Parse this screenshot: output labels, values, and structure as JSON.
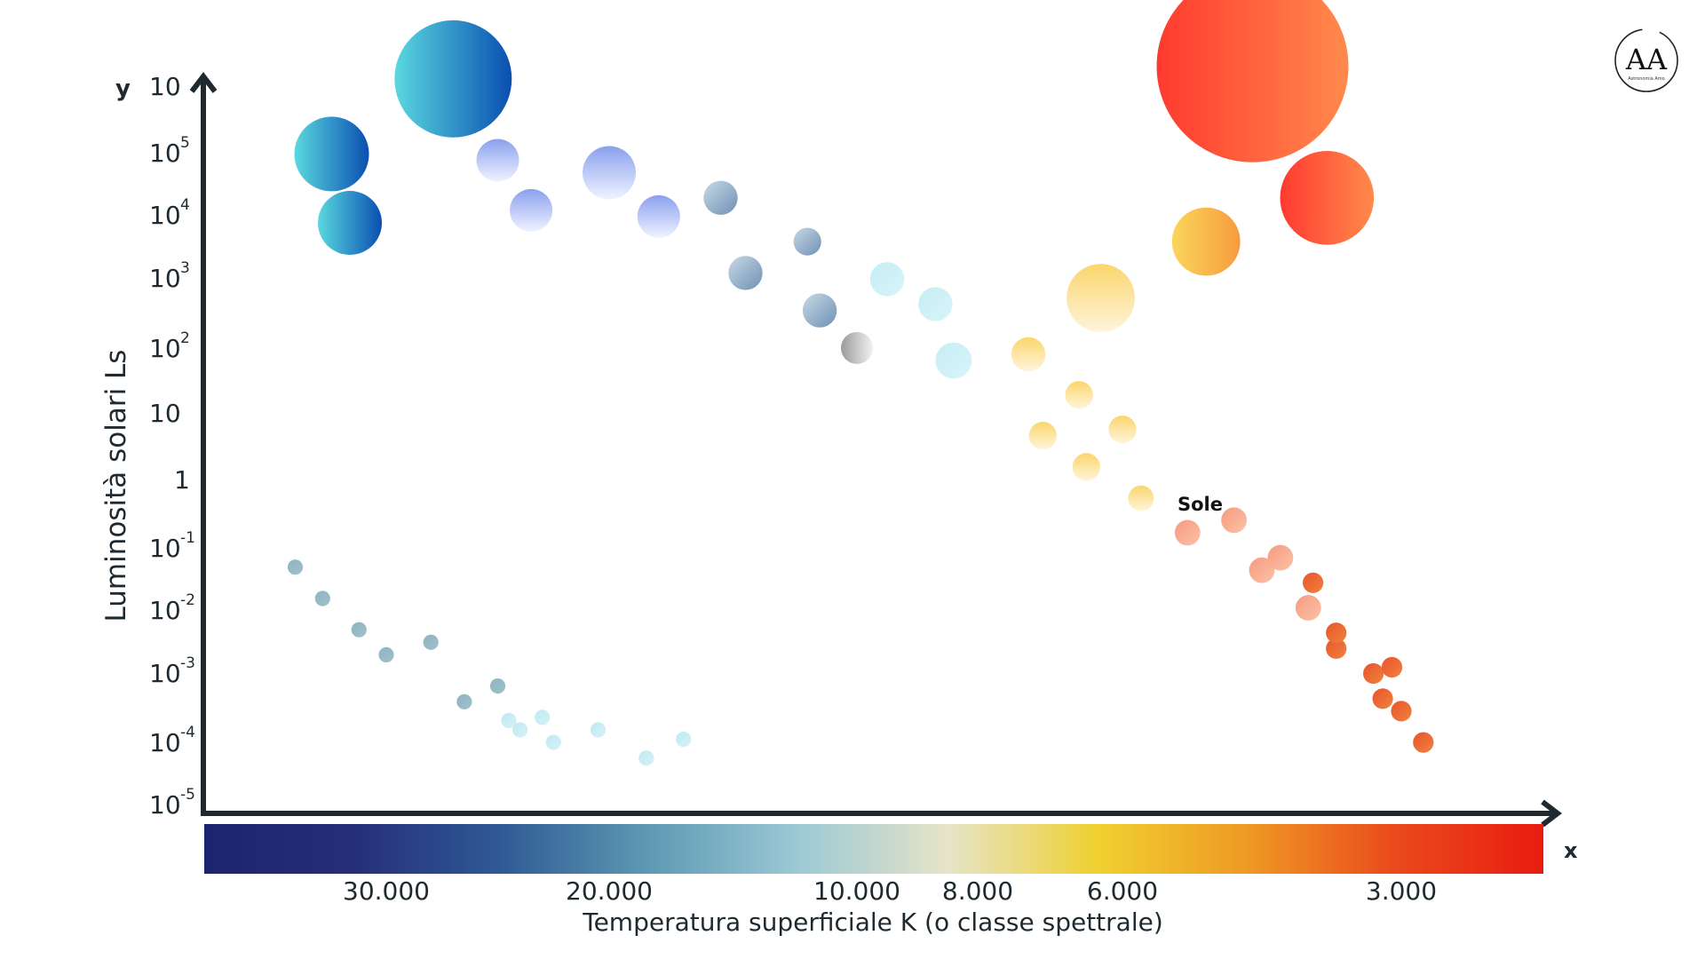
{
  "chart_data": {
    "type": "scatter",
    "title": "",
    "xlabel": "Temperatura superficiale K (o classe spettrale)",
    "ylabel": "Luminosità solari Ls",
    "x_axis_letter": "x",
    "y_axis_letter": "y",
    "x_scale": "reversed",
    "y_scale": "log",
    "ylim_exponent": [
      -5,
      6
    ],
    "x_tick_labels": [
      "30.000",
      "20.000",
      "10.000",
      "8.000",
      "6.000",
      "3.000"
    ],
    "y_tick_labels": [
      {
        "base": "10",
        "exp": ""
      },
      {
        "base": "10",
        "exp": "5"
      },
      {
        "base": "10",
        "exp": "4"
      },
      {
        "base": "10",
        "exp": "3"
      },
      {
        "base": "10",
        "exp": "2"
      },
      {
        "base": "10",
        "exp": ""
      },
      {
        "base": "1",
        "exp": ""
      },
      {
        "base": "10",
        "exp": "-1"
      },
      {
        "base": "10",
        "exp": "-2"
      },
      {
        "base": "10",
        "exp": "-3"
      },
      {
        "base": "10",
        "exp": "-4"
      },
      {
        "base": "10",
        "exp": "-5"
      }
    ],
    "color_bar": [
      "#1c2470",
      "#262e7a",
      "#2f5a95",
      "#5e9ab3",
      "#9cc9d5",
      "#e6e4c7",
      "#efd030",
      "#ef9a24",
      "#ea4a1c",
      "#e81c10"
    ],
    "annotation": "Sole",
    "grid": false,
    "legend": "none",
    "series": [
      {
        "group": "hot-blue",
        "points": [
          {
            "T": 27000,
            "logL": 6.4,
            "r": 5.5
          },
          {
            "T": 33000,
            "logL": 5.2,
            "r": 3.5
          },
          {
            "T": 32000,
            "logL": 4.1,
            "r": 3.0
          },
          {
            "T": 25000,
            "logL": 5.1,
            "r": 2.0
          },
          {
            "T": 23500,
            "logL": 4.3,
            "r": 2.0
          },
          {
            "T": 20000,
            "logL": 4.9,
            "r": 2.5
          },
          {
            "T": 18000,
            "logL": 4.2,
            "r": 2.0
          }
        ]
      },
      {
        "group": "blue-white",
        "points": [
          {
            "T": 15500,
            "logL": 4.5,
            "r": 1.6
          },
          {
            "T": 14500,
            "logL": 3.3,
            "r": 1.6
          },
          {
            "T": 12000,
            "logL": 3.8,
            "r": 1.3
          },
          {
            "T": 11500,
            "logL": 2.7,
            "r": 1.6
          },
          {
            "T": 10000,
            "logL": 2.1,
            "r": 1.5
          },
          {
            "T": 9500,
            "logL": 3.2,
            "r": 1.6
          },
          {
            "T": 8700,
            "logL": 2.8,
            "r": 1.6
          },
          {
            "T": 8400,
            "logL": 1.9,
            "r": 1.7
          }
        ]
      },
      {
        "group": "yellow",
        "points": [
          {
            "T": 7300,
            "logL": 2.0,
            "r": 1.6
          },
          {
            "T": 7100,
            "logL": 0.7,
            "r": 1.3
          },
          {
            "T": 6600,
            "logL": 1.35,
            "r": 1.3
          },
          {
            "T": 6500,
            "logL": 0.2,
            "r": 1.3
          },
          {
            "T": 6000,
            "logL": 0.8,
            "r": 1.3
          },
          {
            "T": 5800,
            "logL": -0.3,
            "r": 1.2
          },
          {
            "T": 6300,
            "logL": 2.9,
            "r": 3.2
          },
          {
            "T": 5100,
            "logL": 3.8,
            "r": 3.2
          }
        ]
      },
      {
        "group": "red-giants",
        "points": [
          {
            "T": 4600,
            "logL": 6.6,
            "r": 9.0
          },
          {
            "T": 3800,
            "logL": 4.5,
            "r": 4.4
          }
        ]
      },
      {
        "group": "orange-red-dwarfs",
        "points": [
          {
            "T": 5300,
            "logL": -0.85,
            "r": 1.2
          },
          {
            "T": 4800,
            "logL": -0.65,
            "r": 1.2
          },
          {
            "T": 4500,
            "logL": -1.45,
            "r": 1.2
          },
          {
            "T": 4300,
            "logL": -1.25,
            "r": 1.2
          },
          {
            "T": 4000,
            "logL": -2.05,
            "r": 1.2
          },
          {
            "T": 3950,
            "logL": -1.65,
            "r": 0.8
          },
          {
            "T": 3700,
            "logL": -2.7,
            "r": 0.8
          },
          {
            "T": 3700,
            "logL": -2.45,
            "r": 0.8
          },
          {
            "T": 3300,
            "logL": -3.1,
            "r": 0.8
          },
          {
            "T": 3200,
            "logL": -3.5,
            "r": 0.8
          },
          {
            "T": 3100,
            "logL": -3.0,
            "r": 0.8
          },
          {
            "T": 3000,
            "logL": -3.7,
            "r": 0.8
          },
          {
            "T": 2800,
            "logL": -4.2,
            "r": 0.8
          }
        ]
      },
      {
        "group": "white-dwarfs",
        "points": [
          {
            "T": 35000,
            "logL": -1.4,
            "r": 0.55
          },
          {
            "T": 33500,
            "logL": -1.9,
            "r": 0.55
          },
          {
            "T": 31500,
            "logL": -2.4,
            "r": 0.55
          },
          {
            "T": 30000,
            "logL": -2.8,
            "r": 0.55
          },
          {
            "T": 28000,
            "logL": -2.6,
            "r": 0.55
          },
          {
            "T": 26500,
            "logL": -3.55,
            "r": 0.55
          },
          {
            "T": 25000,
            "logL": -3.3,
            "r": 0.55
          },
          {
            "T": 24500,
            "logL": -3.85,
            "r": 0.55
          },
          {
            "T": 24000,
            "logL": -4.0,
            "r": 0.55
          },
          {
            "T": 23000,
            "logL": -3.8,
            "r": 0.55
          },
          {
            "T": 22500,
            "logL": -4.2,
            "r": 0.55
          },
          {
            "T": 20500,
            "logL": -4.0,
            "r": 0.55
          },
          {
            "T": 18500,
            "logL": -4.45,
            "r": 0.55
          },
          {
            "T": 17000,
            "logL": -4.15,
            "r": 0.55
          }
        ]
      }
    ]
  },
  "logo": {
    "text": "AA",
    "subtitle": "Astronomia Amo"
  }
}
